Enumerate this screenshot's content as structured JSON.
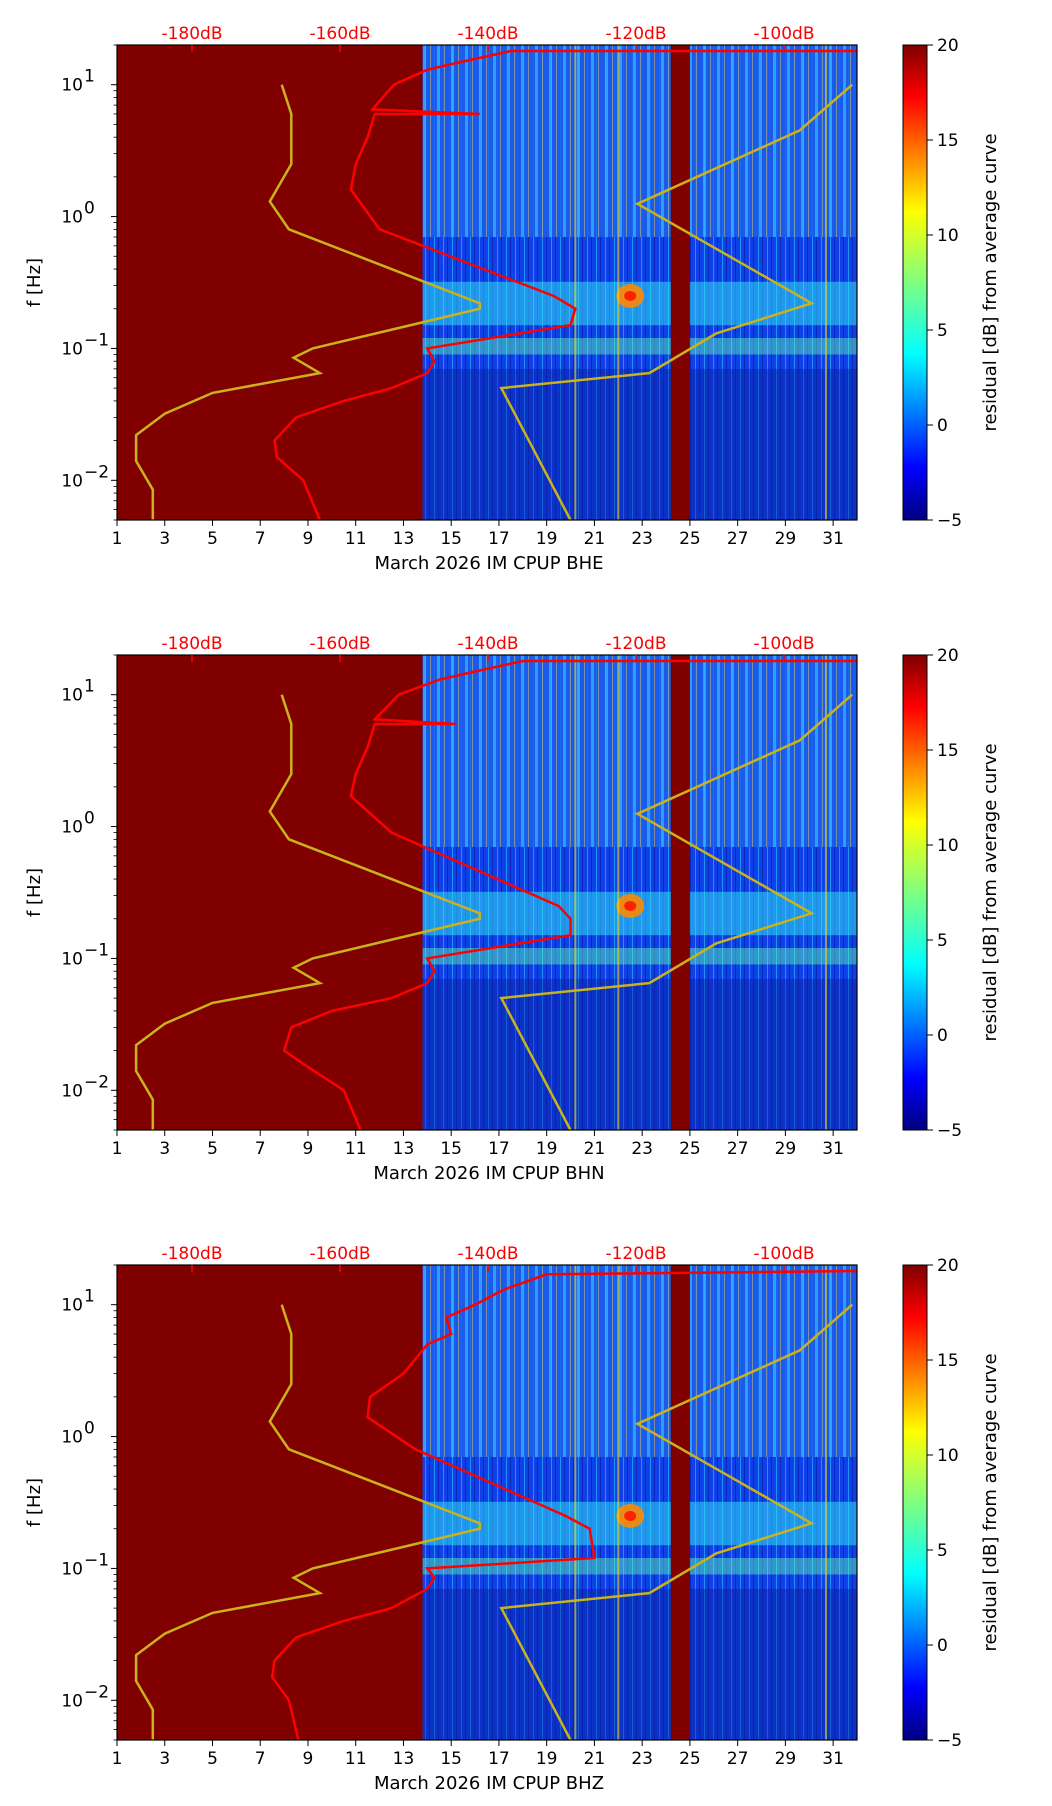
{
  "chart_data": [
    {
      "type": "heatmap",
      "xlabel": "March 2026 IM CPUP  BHE",
      "ylabel": "f [Hz]",
      "x_ticks": [
        "1",
        "3",
        "5",
        "7",
        "9",
        "11",
        "13",
        "15",
        "17",
        "19",
        "21",
        "23",
        "25",
        "27",
        "29",
        "31"
      ],
      "y_ticks": [
        {
          "exp": "1",
          "value": 10
        },
        {
          "exp": "0",
          "value": 1
        },
        {
          "exp": "−1",
          "value": 0.1
        },
        {
          "exp": "−2",
          "value": 0.01
        }
      ],
      "db_ticks": [
        "-180dB",
        "-160dB",
        "-140dB",
        "-120dB",
        "-100dB"
      ],
      "xlim": [
        1,
        32
      ],
      "ylim": [
        0.005,
        20
      ],
      "colorbar": {
        "label": "residual [dB] from average curve",
        "ticks": [
          "20",
          "15",
          "10",
          "5",
          "0",
          "−5"
        ],
        "range": [
          -5,
          20
        ]
      },
      "data_gaps": [
        [
          1,
          13.8
        ],
        [
          24.2,
          25.0
        ]
      ],
      "noise_model_curve": [
        [
          2.5,
          0.005
        ],
        [
          2.5,
          0.0085
        ],
        [
          1.8,
          0.014
        ],
        [
          1.8,
          0.022
        ],
        [
          3,
          0.032
        ],
        [
          5,
          0.046
        ],
        [
          9.5,
          0.065
        ],
        [
          8.4,
          0.085
        ],
        [
          9.2,
          0.1
        ],
        [
          16.2,
          0.2
        ],
        [
          16.2,
          0.22
        ],
        [
          8.2,
          0.8
        ],
        [
          7.4,
          1.3
        ],
        [
          8.3,
          2.5
        ],
        [
          8.3,
          6
        ],
        [
          7.9,
          10
        ]
      ],
      "noise_model_curve_right": [
        [
          20,
          0.005
        ],
        [
          17.1,
          0.05
        ],
        [
          23.3,
          0.065
        ],
        [
          26.1,
          0.13
        ],
        [
          30.1,
          0.22
        ],
        [
          22.8,
          1.25
        ],
        [
          29.6,
          4.5
        ],
        [
          31.8,
          10
        ]
      ],
      "avg_psd_curve": [
        [
          9.5,
          0.005
        ],
        [
          8.8,
          0.01
        ],
        [
          7.7,
          0.015
        ],
        [
          7.6,
          0.02
        ],
        [
          8.5,
          0.03
        ],
        [
          10.5,
          0.04
        ],
        [
          12.5,
          0.05
        ],
        [
          14,
          0.065
        ],
        [
          14.3,
          0.08
        ],
        [
          14,
          0.1
        ],
        [
          20,
          0.15
        ],
        [
          20.2,
          0.2
        ],
        [
          19.3,
          0.25
        ],
        [
          12,
          0.8
        ],
        [
          10.8,
          1.6
        ],
        [
          11,
          2.5
        ],
        [
          11.5,
          4
        ],
        [
          11.8,
          6
        ],
        [
          16.2,
          6
        ],
        [
          11.7,
          6.5
        ],
        [
          12.6,
          10
        ],
        [
          14,
          13
        ],
        [
          15.5,
          15
        ],
        [
          17.5,
          18
        ],
        [
          32,
          18
        ]
      ]
    },
    {
      "type": "heatmap",
      "xlabel": "March 2026 IM CPUP  BHN",
      "ylabel": "f [Hz]",
      "x_ticks": [
        "1",
        "3",
        "5",
        "7",
        "9",
        "11",
        "13",
        "15",
        "17",
        "19",
        "21",
        "23",
        "25",
        "27",
        "29",
        "31"
      ],
      "y_ticks": [
        {
          "exp": "1",
          "value": 10
        },
        {
          "exp": "0",
          "value": 1
        },
        {
          "exp": "−1",
          "value": 0.1
        },
        {
          "exp": "−2",
          "value": 0.01
        }
      ],
      "db_ticks": [
        "-180dB",
        "-160dB",
        "-140dB",
        "-120dB",
        "-100dB"
      ],
      "xlim": [
        1,
        32
      ],
      "ylim": [
        0.005,
        20
      ],
      "colorbar": {
        "label": "residual [dB] from average curve",
        "ticks": [
          "20",
          "15",
          "10",
          "5",
          "0",
          "−5"
        ],
        "range": [
          -5,
          20
        ]
      },
      "data_gaps": [
        [
          1,
          13.8
        ],
        [
          24.2,
          25.0
        ]
      ],
      "noise_model_curve": [
        [
          2.5,
          0.005
        ],
        [
          2.5,
          0.0085
        ],
        [
          1.8,
          0.014
        ],
        [
          1.8,
          0.022
        ],
        [
          3,
          0.032
        ],
        [
          5,
          0.046
        ],
        [
          9.5,
          0.065
        ],
        [
          8.4,
          0.085
        ],
        [
          9.2,
          0.1
        ],
        [
          16.2,
          0.2
        ],
        [
          16.2,
          0.22
        ],
        [
          8.2,
          0.8
        ],
        [
          7.4,
          1.3
        ],
        [
          8.3,
          2.5
        ],
        [
          8.3,
          6
        ],
        [
          7.9,
          10
        ]
      ],
      "noise_model_curve_right": [
        [
          20,
          0.005
        ],
        [
          17.1,
          0.05
        ],
        [
          23.3,
          0.065
        ],
        [
          26.1,
          0.13
        ],
        [
          30.1,
          0.22
        ],
        [
          22.8,
          1.25
        ],
        [
          29.6,
          4.5
        ],
        [
          31.8,
          10
        ]
      ],
      "avg_psd_curve": [
        [
          11.2,
          0.005
        ],
        [
          10.5,
          0.01
        ],
        [
          9,
          0.015
        ],
        [
          8,
          0.02
        ],
        [
          8.3,
          0.03
        ],
        [
          10,
          0.04
        ],
        [
          12.5,
          0.05
        ],
        [
          14,
          0.065
        ],
        [
          14.3,
          0.08
        ],
        [
          14,
          0.1
        ],
        [
          20,
          0.15
        ],
        [
          20,
          0.2
        ],
        [
          19.5,
          0.25
        ],
        [
          12.5,
          0.9
        ],
        [
          10.8,
          1.7
        ],
        [
          11,
          2.5
        ],
        [
          11.5,
          4
        ],
        [
          11.8,
          6
        ],
        [
          15.2,
          6
        ],
        [
          11.8,
          6.5
        ],
        [
          12.8,
          10
        ],
        [
          14.5,
          13
        ],
        [
          16,
          15
        ],
        [
          18,
          18
        ],
        [
          32,
          18
        ]
      ]
    },
    {
      "type": "heatmap",
      "xlabel": "March 2026 IM CPUP  BHZ",
      "ylabel": "f [Hz]",
      "x_ticks": [
        "1",
        "3",
        "5",
        "7",
        "9",
        "11",
        "13",
        "15",
        "17",
        "19",
        "21",
        "23",
        "25",
        "27",
        "29",
        "31"
      ],
      "y_ticks": [
        {
          "exp": "1",
          "value": 10
        },
        {
          "exp": "0",
          "value": 1
        },
        {
          "exp": "−1",
          "value": 0.1
        },
        {
          "exp": "−2",
          "value": 0.01
        }
      ],
      "db_ticks": [
        "-180dB",
        "-160dB",
        "-140dB",
        "-120dB",
        "-100dB"
      ],
      "xlim": [
        1,
        32
      ],
      "ylim": [
        0.005,
        20
      ],
      "colorbar": {
        "label": "residual [dB] from average curve",
        "ticks": [
          "20",
          "15",
          "10",
          "5",
          "0",
          "−5"
        ],
        "range": [
          -5,
          20
        ]
      },
      "data_gaps": [
        [
          1,
          13.8
        ],
        [
          24.2,
          25.0
        ]
      ],
      "noise_model_curve": [
        [
          2.5,
          0.005
        ],
        [
          2.5,
          0.0085
        ],
        [
          1.8,
          0.014
        ],
        [
          1.8,
          0.022
        ],
        [
          3,
          0.032
        ],
        [
          5,
          0.046
        ],
        [
          9.5,
          0.065
        ],
        [
          8.4,
          0.085
        ],
        [
          9.2,
          0.1
        ],
        [
          16.2,
          0.2
        ],
        [
          16.2,
          0.22
        ],
        [
          8.2,
          0.8
        ],
        [
          7.4,
          1.3
        ],
        [
          8.3,
          2.5
        ],
        [
          8.3,
          6
        ],
        [
          7.9,
          10
        ]
      ],
      "noise_model_curve_right": [
        [
          20,
          0.005
        ],
        [
          17.1,
          0.05
        ],
        [
          23.3,
          0.065
        ],
        [
          26.1,
          0.13
        ],
        [
          30.1,
          0.22
        ],
        [
          22.8,
          1.25
        ],
        [
          29.6,
          4.5
        ],
        [
          31.8,
          10
        ]
      ],
      "avg_psd_curve": [
        [
          8.6,
          0.005
        ],
        [
          8.2,
          0.01
        ],
        [
          7.5,
          0.015
        ],
        [
          7.6,
          0.02
        ],
        [
          8.5,
          0.03
        ],
        [
          10.5,
          0.04
        ],
        [
          12.5,
          0.05
        ],
        [
          14,
          0.07
        ],
        [
          14.3,
          0.085
        ],
        [
          14,
          0.1
        ],
        [
          21,
          0.12
        ],
        [
          20.8,
          0.2
        ],
        [
          19.8,
          0.25
        ],
        [
          13.5,
          0.8
        ],
        [
          11.5,
          1.4
        ],
        [
          11.6,
          2
        ],
        [
          13,
          3
        ],
        [
          14,
          5
        ],
        [
          15,
          6
        ],
        [
          14.8,
          8
        ],
        [
          16,
          10
        ],
        [
          17.2,
          13
        ],
        [
          19,
          17
        ],
        [
          32,
          18
        ]
      ]
    }
  ],
  "colors": {
    "gap": "#800000",
    "noise_model": "#c9b21c",
    "avg_psd": "#ff0000",
    "db_tick": "#ff0000"
  }
}
